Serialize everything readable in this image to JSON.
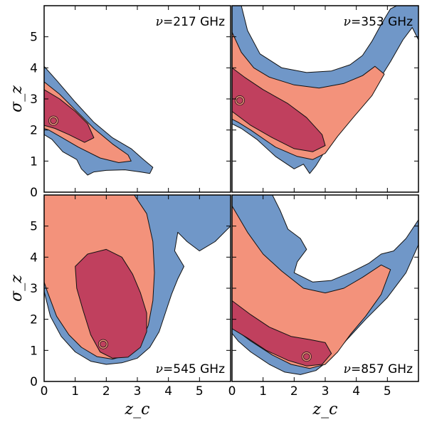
{
  "chart_data": {
    "type": "contour",
    "layout": "2x2 shared axes",
    "xlabel": "z_c",
    "ylabel": "σ_z",
    "xlim": [
      0,
      6
    ],
    "ylim": [
      0,
      6
    ],
    "xticks": [
      "0",
      "1",
      "2",
      "3",
      "4",
      "5"
    ],
    "yticks": [
      "0",
      "1",
      "2",
      "3",
      "4",
      "5"
    ],
    "levels": [
      {
        "name": "outer",
        "color": "#7097c8"
      },
      {
        "name": "middle",
        "color": "#f3927b"
      },
      {
        "name": "inner",
        "color": "#c0405e"
      }
    ],
    "panels": [
      {
        "label": "ν=217 GHz",
        "label_parts": {
          "symbol": "ν",
          "value": "=217 GHz"
        },
        "best_fit": {
          "z_c": 0.3,
          "sigma_z": 2.3
        },
        "regions": {
          "outer": [
            [
              0,
              4.05
            ],
            [
              0.4,
              3.6
            ],
            [
              1.0,
              2.9
            ],
            [
              1.6,
              2.25
            ],
            [
              2.2,
              1.75
            ],
            [
              2.8,
              1.4
            ],
            [
              3.2,
              1.05
            ],
            [
              3.5,
              0.8
            ],
            [
              3.4,
              0.6
            ],
            [
              3.1,
              0.65
            ],
            [
              2.6,
              0.72
            ],
            [
              2.0,
              0.7
            ],
            [
              1.6,
              0.65
            ],
            [
              1.4,
              0.55
            ],
            [
              1.2,
              0.75
            ],
            [
              1.05,
              1.05
            ],
            [
              0.6,
              1.3
            ],
            [
              0.25,
              1.7
            ],
            [
              0,
              1.85
            ]
          ],
          "middle": [
            [
              0,
              3.55
            ],
            [
              0.5,
              3.15
            ],
            [
              1.0,
              2.65
            ],
            [
              1.6,
              2.05
            ],
            [
              2.2,
              1.55
            ],
            [
              2.7,
              1.2
            ],
            [
              2.8,
              1.0
            ],
            [
              2.4,
              0.95
            ],
            [
              1.8,
              1.1
            ],
            [
              1.1,
              1.45
            ],
            [
              0.5,
              1.8
            ],
            [
              0.15,
              2.0
            ],
            [
              0,
              2.05
            ]
          ],
          "inner": [
            [
              0,
              3.3
            ],
            [
              0.5,
              3.0
            ],
            [
              1.0,
              2.6
            ],
            [
              1.4,
              2.2
            ],
            [
              1.6,
              1.75
            ],
            [
              1.3,
              1.6
            ],
            [
              0.8,
              1.85
            ],
            [
              0.35,
              2.05
            ],
            [
              0,
              2.15
            ]
          ]
        }
      },
      {
        "label": "ν=353 GHz",
        "label_parts": {
          "symbol": "ν",
          "value": "=353 GHz"
        },
        "best_fit": {
          "z_c": 0.25,
          "sigma_z": 2.95
        },
        "regions": {
          "outer": [
            [
              0,
              6.0
            ],
            [
              0.3,
              6.0
            ],
            [
              0.5,
              5.2
            ],
            [
              0.9,
              4.45
            ],
            [
              1.6,
              4.0
            ],
            [
              2.4,
              3.85
            ],
            [
              3.2,
              3.9
            ],
            [
              3.8,
              4.1
            ],
            [
              4.2,
              4.4
            ],
            [
              4.5,
              4.85
            ],
            [
              4.8,
              5.4
            ],
            [
              5.1,
              5.9
            ],
            [
              5.3,
              6.0
            ],
            [
              6.0,
              6.0
            ],
            [
              6.0,
              4.9
            ],
            [
              5.8,
              5.3
            ],
            [
              5.5,
              4.9
            ],
            [
              5.1,
              4.2
            ],
            [
              4.6,
              3.4
            ],
            [
              4.1,
              2.7
            ],
            [
              3.6,
              2.1
            ],
            [
              3.1,
              1.5
            ],
            [
              2.7,
              0.85
            ],
            [
              2.5,
              0.6
            ],
            [
              2.3,
              0.9
            ],
            [
              2.0,
              0.75
            ],
            [
              1.4,
              1.15
            ],
            [
              0.8,
              1.7
            ],
            [
              0.3,
              2.05
            ],
            [
              0,
              2.2
            ]
          ],
          "middle": [
            [
              0,
              5.15
            ],
            [
              0.3,
              4.5
            ],
            [
              0.7,
              4.0
            ],
            [
              1.2,
              3.7
            ],
            [
              2.0,
              3.45
            ],
            [
              2.8,
              3.35
            ],
            [
              3.6,
              3.5
            ],
            [
              4.2,
              3.75
            ],
            [
              4.6,
              4.05
            ],
            [
              4.9,
              3.8
            ],
            [
              4.5,
              3.1
            ],
            [
              3.9,
              2.4
            ],
            [
              3.4,
              1.8
            ],
            [
              3.0,
              1.25
            ],
            [
              2.6,
              1.05
            ],
            [
              2.1,
              1.15
            ],
            [
              1.4,
              1.45
            ],
            [
              0.6,
              2.0
            ],
            [
              0.2,
              2.25
            ],
            [
              0,
              2.35
            ]
          ],
          "inner": [
            [
              0,
              4.0
            ],
            [
              0.4,
              3.7
            ],
            [
              1.0,
              3.3
            ],
            [
              1.8,
              2.85
            ],
            [
              2.4,
              2.4
            ],
            [
              2.9,
              1.85
            ],
            [
              3.0,
              1.5
            ],
            [
              2.6,
              1.3
            ],
            [
              2.0,
              1.4
            ],
            [
              1.3,
              1.75
            ],
            [
              0.6,
              2.15
            ],
            [
              0.2,
              2.45
            ],
            [
              0,
              2.6
            ]
          ]
        }
      },
      {
        "label": "ν=545 GHz",
        "label_parts": {
          "symbol": "ν",
          "value": "=545 GHz"
        },
        "best_fit": {
          "z_c": 1.9,
          "sigma_z": 1.2
        },
        "regions": {
          "outer": [
            [
              0,
              6.0
            ],
            [
              6.0,
              6.0
            ],
            [
              6.0,
              5.0
            ],
            [
              5.5,
              4.5
            ],
            [
              5.0,
              4.2
            ],
            [
              4.6,
              4.5
            ],
            [
              4.3,
              4.8
            ],
            [
              4.2,
              4.2
            ],
            [
              4.5,
              3.7
            ],
            [
              4.3,
              3.3
            ],
            [
              4.1,
              2.8
            ],
            [
              3.9,
              2.2
            ],
            [
              3.7,
              1.6
            ],
            [
              3.4,
              1.1
            ],
            [
              3.0,
              0.75
            ],
            [
              2.5,
              0.6
            ],
            [
              2.0,
              0.55
            ],
            [
              1.5,
              0.65
            ],
            [
              1.0,
              0.95
            ],
            [
              0.55,
              1.45
            ],
            [
              0.2,
              2.1
            ],
            [
              0,
              2.9
            ]
          ],
          "middle": [
            [
              0,
              6.0
            ],
            [
              2.9,
              6.0
            ],
            [
              3.3,
              5.4
            ],
            [
              3.5,
              4.5
            ],
            [
              3.55,
              3.5
            ],
            [
              3.5,
              2.6
            ],
            [
              3.35,
              1.8
            ],
            [
              3.1,
              1.25
            ],
            [
              2.7,
              0.85
            ],
            [
              2.2,
              0.72
            ],
            [
              1.7,
              0.8
            ],
            [
              1.2,
              1.1
            ],
            [
              0.8,
              1.5
            ],
            [
              0.4,
              2.1
            ],
            [
              0.1,
              2.9
            ],
            [
              0,
              3.2
            ]
          ],
          "inner": [
            [
              1.0,
              3.7
            ],
            [
              1.4,
              4.1
            ],
            [
              2.0,
              4.25
            ],
            [
              2.5,
              4.0
            ],
            [
              2.85,
              3.45
            ],
            [
              3.1,
              2.85
            ],
            [
              3.3,
              2.2
            ],
            [
              3.3,
              1.6
            ],
            [
              3.1,
              1.1
            ],
            [
              2.7,
              0.78
            ],
            [
              2.2,
              0.75
            ],
            [
              1.8,
              0.95
            ],
            [
              1.5,
              1.5
            ],
            [
              1.25,
              2.3
            ],
            [
              1.05,
              3.0
            ]
          ]
        }
      },
      {
        "label": "ν=857 GHz",
        "label_parts": {
          "symbol": "ν",
          "value": "=857 GHz"
        },
        "best_fit": {
          "z_c": 2.4,
          "sigma_z": 0.8
        },
        "regions": {
          "outer": [
            [
              0,
              6.0
            ],
            [
              1.3,
              6.0
            ],
            [
              1.55,
              5.5
            ],
            [
              1.8,
              4.9
            ],
            [
              2.2,
              4.6
            ],
            [
              2.4,
              4.25
            ],
            [
              2.1,
              3.85
            ],
            [
              2.0,
              3.5
            ],
            [
              2.6,
              3.2
            ],
            [
              3.2,
              3.25
            ],
            [
              3.8,
              3.5
            ],
            [
              4.4,
              3.8
            ],
            [
              4.8,
              4.1
            ],
            [
              5.2,
              4.2
            ],
            [
              5.6,
              4.6
            ],
            [
              6.0,
              5.2
            ],
            [
              6.0,
              6.0
            ],
            [
              6.0,
              4.4
            ],
            [
              5.6,
              3.5
            ],
            [
              5.0,
              2.7
            ],
            [
              4.3,
              2.0
            ],
            [
              3.7,
              1.35
            ],
            [
              3.2,
              0.75
            ],
            [
              2.7,
              0.35
            ],
            [
              2.2,
              0.22
            ],
            [
              1.7,
              0.3
            ],
            [
              1.2,
              0.55
            ],
            [
              0.6,
              0.95
            ],
            [
              0.2,
              1.3
            ],
            [
              0,
              1.55
            ]
          ],
          "middle": [
            [
              0,
              5.65
            ],
            [
              0.5,
              4.8
            ],
            [
              1.0,
              4.1
            ],
            [
              1.6,
              3.55
            ],
            [
              2.3,
              3.0
            ],
            [
              3.0,
              2.85
            ],
            [
              3.6,
              3.0
            ],
            [
              4.2,
              3.35
            ],
            [
              4.8,
              3.75
            ],
            [
              5.1,
              3.6
            ],
            [
              4.8,
              2.8
            ],
            [
              4.3,
              2.1
            ],
            [
              3.8,
              1.5
            ],
            [
              3.4,
              0.95
            ],
            [
              3.0,
              0.55
            ],
            [
              2.5,
              0.42
            ],
            [
              1.9,
              0.55
            ],
            [
              1.3,
              0.85
            ],
            [
              0.6,
              1.3
            ],
            [
              0.2,
              1.6
            ],
            [
              0,
              1.8
            ]
          ],
          "inner": [
            [
              0,
              2.6
            ],
            [
              0.6,
              2.15
            ],
            [
              1.2,
              1.75
            ],
            [
              1.9,
              1.45
            ],
            [
              2.5,
              1.35
            ],
            [
              3.0,
              1.25
            ],
            [
              3.2,
              0.9
            ],
            [
              2.9,
              0.55
            ],
            [
              2.4,
              0.5
            ],
            [
              1.8,
              0.68
            ],
            [
              1.1,
              1.0
            ],
            [
              0.5,
              1.4
            ],
            [
              0,
              1.7
            ]
          ]
        }
      }
    ]
  }
}
